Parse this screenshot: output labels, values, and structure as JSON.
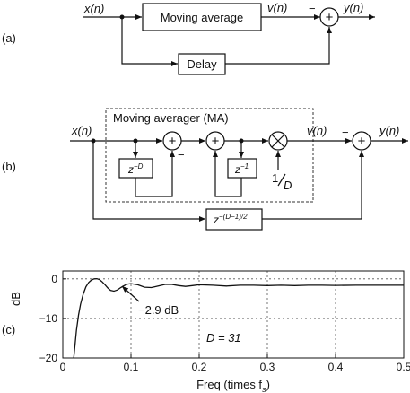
{
  "panel_a": {
    "tag": "(a)",
    "input": "x(n)",
    "ma_block": "Moving average",
    "v": "v(n)",
    "output": "y(n)",
    "delay_block": "Delay",
    "minus": "−",
    "plus": "+"
  },
  "panel_b": {
    "tag": "(b)",
    "input": "x(n)",
    "ma_title": "Moving averager (MA)",
    "zD": "z",
    "zD_exp": "−D",
    "z1": "z",
    "z1_exp": "−1",
    "gain_num": "1",
    "gain_den": "D",
    "v": "v(n)",
    "output": "y(n)",
    "delay": "z",
    "delay_exp": "−(D−1)/2",
    "minus": "−",
    "plus": "+",
    "times": "×"
  },
  "panel_c": {
    "tag": "(c)",
    "annotation": "−2.9 dB",
    "param": "D = 31"
  },
  "chart_data": {
    "type": "line",
    "xlabel": "Freq (times f",
    "xlabel_sub": "s",
    "xlabel_end": ")",
    "ylabel": "dB",
    "xlim": [
      0,
      0.5
    ],
    "ylim": [
      -20,
      2
    ],
    "xticks": [
      0,
      0.1,
      0.2,
      0.3,
      0.4,
      0.5
    ],
    "xtick_labels": [
      "0",
      "0.1",
      "0.2",
      "0.3",
      "0.4",
      "0.5"
    ],
    "yticks": [
      0,
      -10,
      -20
    ],
    "ytick_labels": [
      "0",
      "−10",
      "−20"
    ],
    "grid": true,
    "series": [
      {
        "x": [
          0.016,
          0.018,
          0.02,
          0.023,
          0.026,
          0.03,
          0.034,
          0.038,
          0.042,
          0.046,
          0.05,
          0.054,
          0.058,
          0.062,
          0.066,
          0.07,
          0.075,
          0.08,
          0.085,
          0.09,
          0.095,
          0.1,
          0.11,
          0.12,
          0.13,
          0.14,
          0.15,
          0.16,
          0.17,
          0.18,
          0.19,
          0.2,
          0.22,
          0.24,
          0.26,
          0.28,
          0.3,
          0.32,
          0.34,
          0.36,
          0.38,
          0.4,
          0.43,
          0.46,
          0.5
        ],
        "y": [
          -20,
          -16.5,
          -13,
          -9.2,
          -6.4,
          -3.8,
          -2.0,
          -0.9,
          -0.3,
          0.0,
          0.05,
          -0.2,
          -0.8,
          -1.5,
          -2.3,
          -2.9,
          -3.1,
          -2.8,
          -2.2,
          -1.7,
          -1.3,
          -1.2,
          -1.5,
          -2.1,
          -2.2,
          -1.8,
          -1.4,
          -1.4,
          -1.7,
          -1.9,
          -1.7,
          -1.5,
          -1.6,
          -1.8,
          -1.6,
          -1.6,
          -1.7,
          -1.6,
          -1.7,
          -1.6,
          -1.6,
          -1.65,
          -1.6,
          -1.6,
          -1.6
        ]
      }
    ]
  }
}
